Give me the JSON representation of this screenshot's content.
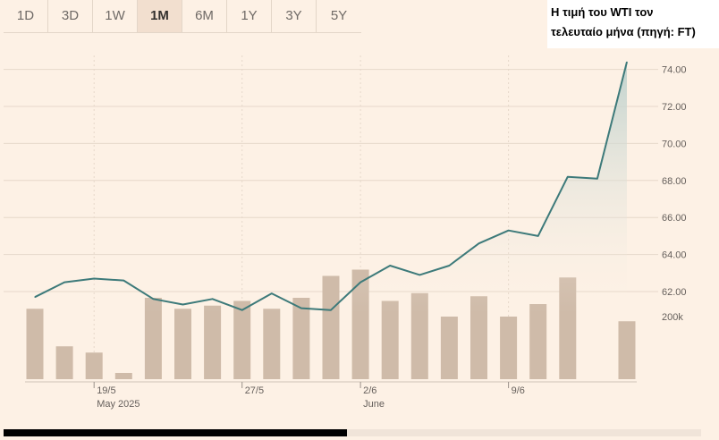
{
  "tabs": [
    {
      "label": "1D"
    },
    {
      "label": "3D"
    },
    {
      "label": "1W"
    },
    {
      "label": "1M",
      "active": true
    },
    {
      "label": "6M"
    },
    {
      "label": "1Y"
    },
    {
      "label": "3Y"
    },
    {
      "label": "5Y"
    }
  ],
  "caption": {
    "line1": "Η τιμή του WTI τον",
    "line2": "τελευταίο μήνα (πηγή: FT)"
  },
  "colors": {
    "line": "#3d7a7a",
    "area_top": "#bcd0cc",
    "bar": "#cfbba9",
    "background": "#fdf1e5",
    "grid": "#e6d8ca"
  },
  "chart_data": {
    "type": "line",
    "price": {
      "values": [
        61.7,
        62.5,
        62.7,
        62.6,
        61.6,
        61.3,
        61.6,
        61.0,
        61.9,
        61.1,
        61.0,
        62.5,
        63.4,
        62.9,
        63.4,
        64.6,
        65.3,
        65.0,
        68.2,
        68.1,
        74.4
      ],
      "yticks": [
        62,
        64,
        66,
        68,
        70,
        72,
        74
      ],
      "ytick_labels": [
        "62.00",
        "64.00",
        "66.00",
        "68.00",
        "70.00",
        "72.00",
        "74.00"
      ]
    },
    "volume": {
      "values": [
        225000,
        105000,
        85000,
        20000,
        260000,
        225000,
        235000,
        250000,
        225000,
        260000,
        330000,
        350000,
        250000,
        275000,
        200000,
        265000,
        200000,
        240000,
        325000,
        null,
        185000
      ],
      "ytick_value": 200000,
      "ytick_label": "200k"
    },
    "x_ticks": [
      {
        "index": 2,
        "label": "19/5",
        "sublabel": "May 2025"
      },
      {
        "index": 7,
        "label": "27/5",
        "sublabel": ""
      },
      {
        "index": 11,
        "label": "2/6",
        "sublabel": "June"
      },
      {
        "index": 16,
        "label": "9/6",
        "sublabel": ""
      }
    ]
  }
}
